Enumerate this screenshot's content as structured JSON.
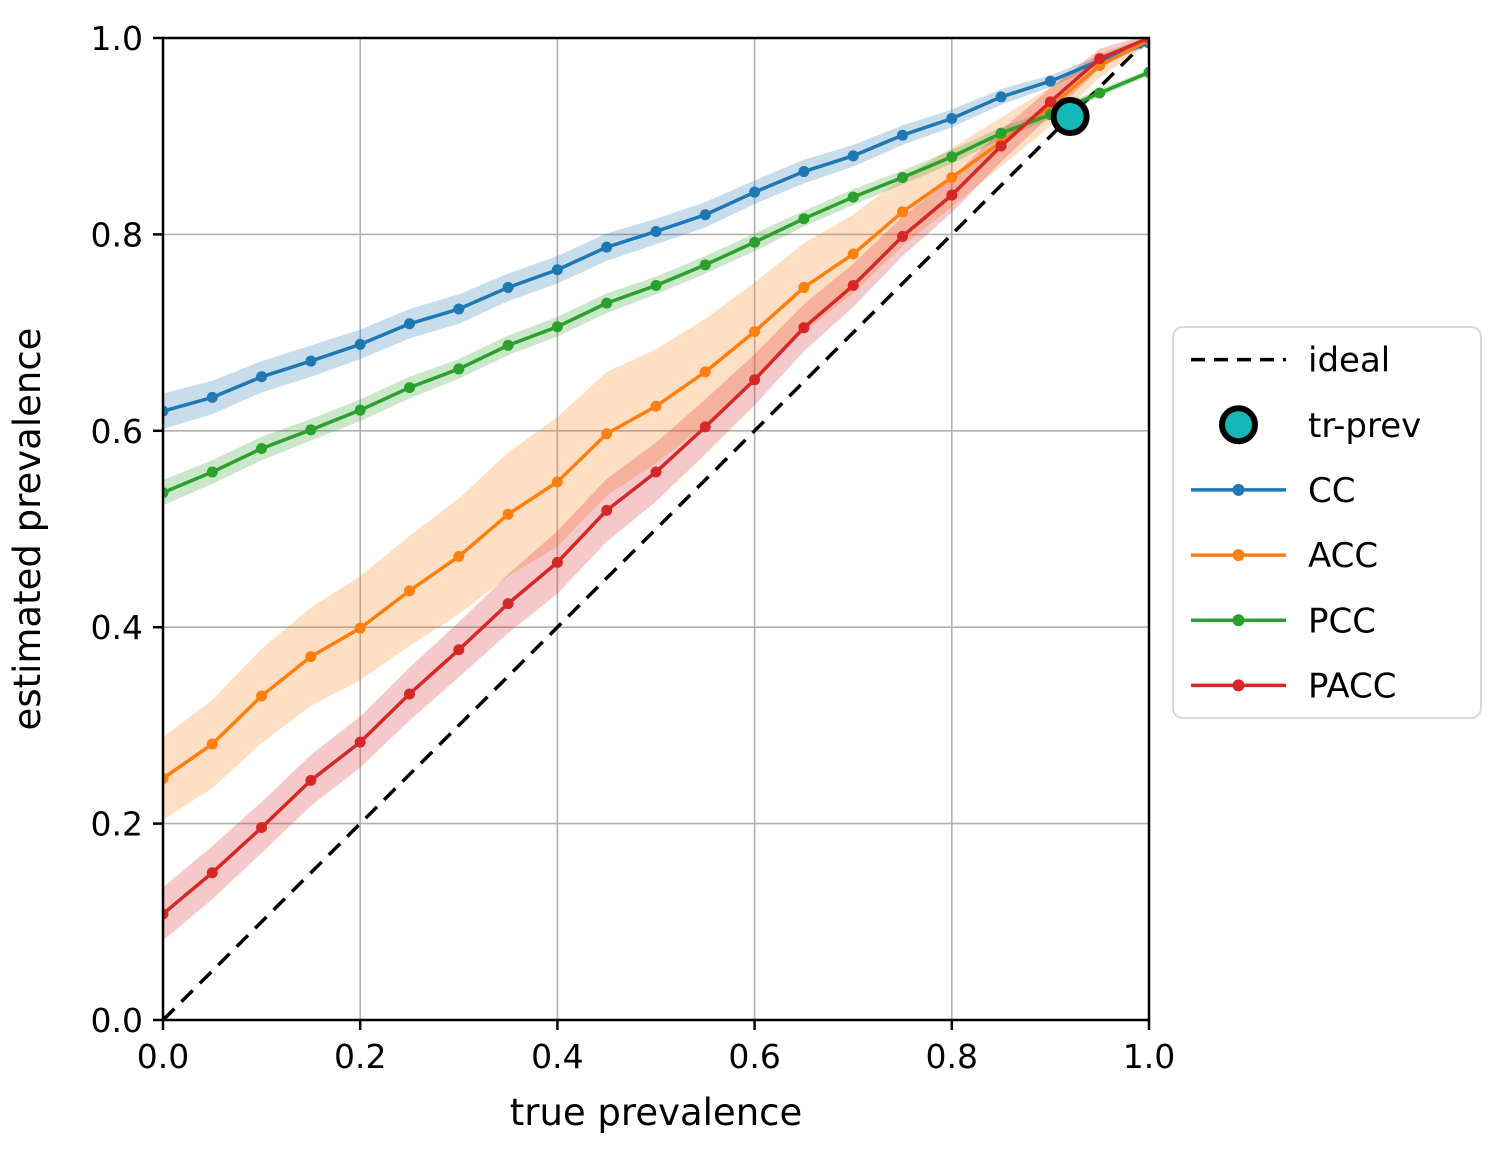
{
  "chart_data": {
    "type": "line",
    "title": "",
    "xlabel": "true prevalence",
    "ylabel": "estimated prevalence",
    "xlim": [
      0.0,
      1.0
    ],
    "ylim": [
      0.0,
      1.0
    ],
    "grid": true,
    "legend_position": "outside-right",
    "xticks": [
      0.0,
      0.2,
      0.4,
      0.6,
      0.8,
      1.0
    ],
    "xtick_labels": [
      "0.0",
      "0.2",
      "0.4",
      "0.6",
      "0.8",
      "1.0"
    ],
    "yticks": [
      0.0,
      0.2,
      0.4,
      0.6,
      0.8,
      1.0
    ],
    "ytick_labels": [
      "0.0",
      "0.2",
      "0.4",
      "0.6",
      "0.8",
      "1.0"
    ],
    "x": [
      0.0,
      0.05,
      0.1,
      0.15,
      0.2,
      0.25,
      0.3,
      0.35,
      0.4,
      0.45,
      0.5,
      0.55,
      0.6,
      0.65,
      0.7,
      0.75,
      0.8,
      0.85,
      0.9,
      0.95,
      1.0
    ],
    "series": [
      {
        "name": "CC",
        "color": "#1f77b4",
        "values": [
          0.62,
          0.634,
          0.655,
          0.671,
          0.688,
          0.709,
          0.724,
          0.746,
          0.764,
          0.787,
          0.803,
          0.82,
          0.843,
          0.864,
          0.88,
          0.901,
          0.918,
          0.94,
          0.956,
          0.977,
          0.995
        ],
        "band_halfwidth": [
          0.018,
          0.017,
          0.016,
          0.016,
          0.015,
          0.015,
          0.015,
          0.014,
          0.014,
          0.014,
          0.013,
          0.013,
          0.012,
          0.012,
          0.011,
          0.01,
          0.009,
          0.008,
          0.006,
          0.005,
          0.003
        ]
      },
      {
        "name": "ACC",
        "color": "#ff7f0e",
        "values": [
          0.246,
          0.281,
          0.33,
          0.37,
          0.399,
          0.437,
          0.472,
          0.515,
          0.548,
          0.597,
          0.625,
          0.66,
          0.701,
          0.746,
          0.78,
          0.823,
          0.858,
          0.894,
          0.93,
          0.972,
          0.998
        ],
        "band_halfwidth": [
          0.042,
          0.045,
          0.048,
          0.05,
          0.053,
          0.056,
          0.059,
          0.063,
          0.066,
          0.063,
          0.058,
          0.054,
          0.05,
          0.045,
          0.04,
          0.035,
          0.03,
          0.025,
          0.02,
          0.012,
          0.004
        ]
      },
      {
        "name": "PCC",
        "color": "#2ca02c",
        "values": [
          0.537,
          0.558,
          0.582,
          0.601,
          0.621,
          0.644,
          0.663,
          0.687,
          0.706,
          0.73,
          0.748,
          0.769,
          0.792,
          0.816,
          0.838,
          0.858,
          0.879,
          0.903,
          0.922,
          0.944,
          0.965
        ],
        "band_halfwidth": [
          0.013,
          0.012,
          0.012,
          0.011,
          0.011,
          0.011,
          0.01,
          0.01,
          0.01,
          0.01,
          0.009,
          0.009,
          0.009,
          0.008,
          0.008,
          0.007,
          0.007,
          0.006,
          0.005,
          0.004,
          0.003
        ]
      },
      {
        "name": "PACC",
        "color": "#d62728",
        "values": [
          0.108,
          0.15,
          0.196,
          0.244,
          0.283,
          0.332,
          0.377,
          0.424,
          0.466,
          0.519,
          0.558,
          0.604,
          0.652,
          0.705,
          0.748,
          0.798,
          0.84,
          0.89,
          0.935,
          0.979,
          1.0
        ],
        "band_halfwidth": [
          0.027,
          0.027,
          0.026,
          0.026,
          0.026,
          0.027,
          0.028,
          0.03,
          0.032,
          0.032,
          0.03,
          0.028,
          0.026,
          0.024,
          0.022,
          0.02,
          0.018,
          0.016,
          0.014,
          0.01,
          0.004
        ]
      }
    ],
    "ideal": {
      "label": "ideal",
      "from": [
        0.0,
        0.0
      ],
      "to": [
        1.0,
        1.0
      ],
      "color": "#000000",
      "style": "dashed"
    },
    "tr_prev": {
      "label": "tr-prev",
      "x": 0.92,
      "y": 0.92,
      "fill": "#14b8b8",
      "edge": "#000000"
    },
    "legend": {
      "entries": [
        {
          "label": "ideal",
          "kind": "dashed-line",
          "color": "#000000"
        },
        {
          "label": "tr-prev",
          "kind": "big-dot",
          "color": "#14b8b8"
        },
        {
          "label": "CC",
          "kind": "line-dot",
          "color": "#1f77b4"
        },
        {
          "label": "ACC",
          "kind": "line-dot",
          "color": "#ff7f0e"
        },
        {
          "label": "PCC",
          "kind": "line-dot",
          "color": "#2ca02c"
        },
        {
          "label": "PACC",
          "kind": "line-dot",
          "color": "#d62728"
        }
      ]
    },
    "colors": {
      "background": "#ffffff",
      "grid": "#b0b0b0",
      "spine": "#000000",
      "legend_border": "#d9d9d9"
    },
    "band_opacity": 0.25
  }
}
